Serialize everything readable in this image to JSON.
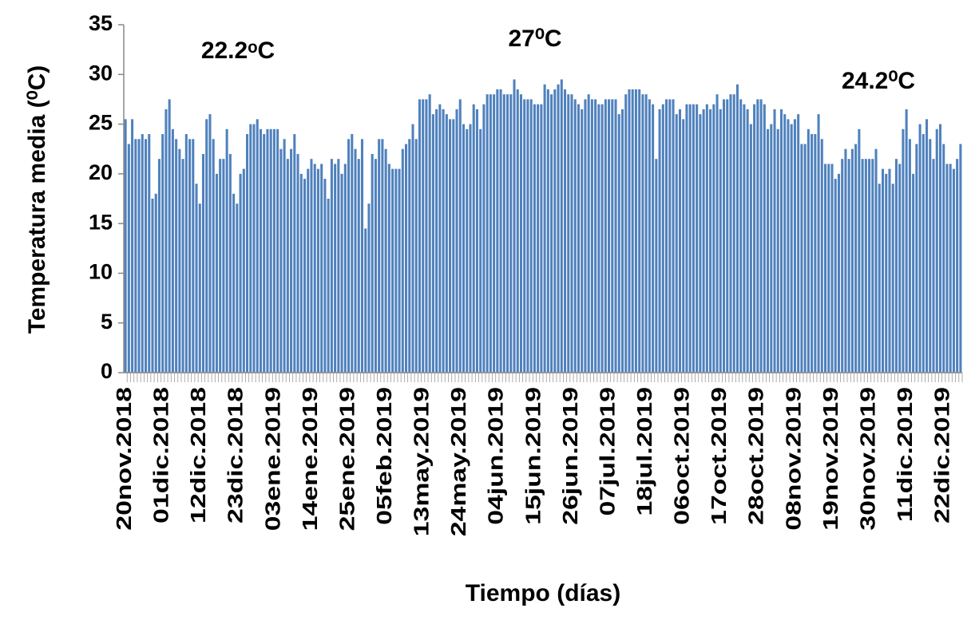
{
  "chart_data": {
    "type": "bar",
    "x_label": "Tiempo (días)",
    "y_label": "Temperatura media (⁰C)",
    "annotations": [
      "22.2ᵒC",
      "27⁰C",
      "24.2⁰C"
    ],
    "color": "#4f81bd",
    "ylim": [
      0,
      35
    ],
    "yticks": [
      0,
      5,
      10,
      15,
      20,
      25,
      30,
      35
    ],
    "categories": [
      "20nov.2018",
      null,
      null,
      null,
      null,
      null,
      null,
      null,
      null,
      null,
      null,
      "01dic.2018",
      null,
      null,
      null,
      null,
      null,
      null,
      null,
      null,
      null,
      null,
      "12dic.2018",
      null,
      null,
      null,
      null,
      null,
      null,
      null,
      null,
      null,
      null,
      "23dic.2018",
      null,
      null,
      null,
      null,
      null,
      null,
      null,
      null,
      null,
      null,
      "03ene.2019",
      null,
      null,
      null,
      null,
      null,
      null,
      null,
      null,
      null,
      null,
      "14ene.2019",
      null,
      null,
      null,
      null,
      null,
      null,
      null,
      null,
      null,
      null,
      "25ene.2019",
      null,
      null,
      null,
      null,
      null,
      null,
      null,
      null,
      null,
      null,
      "05feb.2019",
      null,
      null,
      null,
      null,
      null,
      null,
      null,
      null,
      null,
      null,
      "13may.2019",
      null,
      null,
      null,
      null,
      null,
      null,
      null,
      null,
      null,
      null,
      "24may.2019",
      null,
      null,
      null,
      null,
      null,
      null,
      null,
      null,
      null,
      null,
      "04jun.2019",
      null,
      null,
      null,
      null,
      null,
      null,
      null,
      null,
      null,
      null,
      "15jun.2019",
      null,
      null,
      null,
      null,
      null,
      null,
      null,
      null,
      null,
      null,
      "26jun.2019",
      null,
      null,
      null,
      null,
      null,
      null,
      null,
      null,
      null,
      null,
      "07jul.2019",
      null,
      null,
      null,
      null,
      null,
      null,
      null,
      null,
      null,
      null,
      "18jul.2019",
      null,
      null,
      null,
      null,
      null,
      null,
      null,
      null,
      null,
      null,
      "06oct.2019",
      null,
      null,
      null,
      null,
      null,
      null,
      null,
      null,
      null,
      null,
      "17oct.2019",
      null,
      null,
      null,
      null,
      null,
      null,
      null,
      null,
      null,
      null,
      "28oct.2019",
      null,
      null,
      null,
      null,
      null,
      null,
      null,
      null,
      null,
      null,
      "08nov.2019",
      null,
      null,
      null,
      null,
      null,
      null,
      null,
      null,
      null,
      null,
      "19nov.2019",
      null,
      null,
      null,
      null,
      null,
      null,
      null,
      null,
      null,
      null,
      "30nov.2019",
      null,
      null,
      null,
      null,
      null,
      null,
      null,
      null,
      null,
      null,
      "11dic.2019",
      null,
      null,
      null,
      null,
      null,
      null,
      null,
      null,
      null,
      null,
      "22dic.2019",
      null,
      null,
      null,
      null,
      null
    ],
    "values": [
      25.5,
      23,
      25.5,
      23.5,
      23.5,
      24,
      23.5,
      24,
      17.5,
      18,
      21.5,
      24,
      26.5,
      27.5,
      24.5,
      23.5,
      22.5,
      21.5,
      24,
      23.5,
      23.5,
      19,
      17,
      22,
      25.5,
      26,
      23.5,
      20,
      21.5,
      21.5,
      24.5,
      22,
      18,
      17,
      20,
      20.5,
      24,
      25,
      25,
      25.5,
      24.5,
      24,
      24.5,
      24.5,
      24.5,
      24.5,
      22.5,
      23.5,
      21.5,
      22.5,
      24,
      22,
      20,
      19.5,
      20.5,
      21.5,
      21,
      20.5,
      21,
      19.5,
      17.5,
      21.5,
      21,
      21.5,
      20,
      21,
      23.5,
      24,
      22.5,
      21.5,
      23.5,
      14.5,
      17,
      22,
      21.5,
      23.5,
      23.5,
      22.5,
      21,
      20.5,
      20.5,
      20.5,
      22.5,
      23,
      23.5,
      25,
      23.5,
      27.5,
      27.5,
      27.5,
      28,
      26,
      26.5,
      27,
      26.5,
      26,
      25.5,
      25.5,
      26.5,
      27.5,
      25,
      24.5,
      25,
      27,
      26.5,
      24.5,
      27,
      28,
      28,
      28,
      28.5,
      28.5,
      28,
      28,
      28,
      29.5,
      28.5,
      28,
      27.5,
      27.5,
      27.5,
      27,
      27,
      27,
      29,
      28.5,
      28,
      28.5,
      29,
      29.5,
      28.5,
      28,
      28,
      27.5,
      27,
      26.5,
      27.5,
      28,
      27.5,
      27.5,
      27,
      27,
      27.5,
      27.5,
      27.5,
      27.5,
      26,
      26.5,
      28,
      28.5,
      28.5,
      28.5,
      28.5,
      28,
      28,
      27.5,
      27,
      21.5,
      26.5,
      27,
      27.5,
      27.5,
      27.5,
      26,
      26.5,
      25.5,
      27,
      27,
      27,
      27,
      26,
      26.5,
      27,
      26.5,
      27,
      28,
      26.5,
      27.5,
      27.5,
      28,
      28,
      29,
      27.5,
      27,
      26.5,
      25,
      27,
      27.5,
      27.5,
      27,
      24.5,
      25,
      26.5,
      24.5,
      26.5,
      26,
      25.5,
      25,
      25.5,
      26,
      23,
      23,
      24.5,
      24,
      24,
      26,
      23.5,
      21,
      21,
      21,
      19.5,
      20,
      21.5,
      22.5,
      21.5,
      22.5,
      23,
      24.5,
      21.5,
      21.5,
      21.5,
      21.5,
      22.5,
      19,
      20.5,
      20,
      20.5,
      19,
      21.5,
      21,
      24.5,
      26.5,
      23.5,
      20,
      23,
      25,
      24,
      25.5,
      23.5,
      21.5,
      24.5,
      25,
      23,
      21,
      21,
      20.5,
      21.5,
      23
    ]
  }
}
